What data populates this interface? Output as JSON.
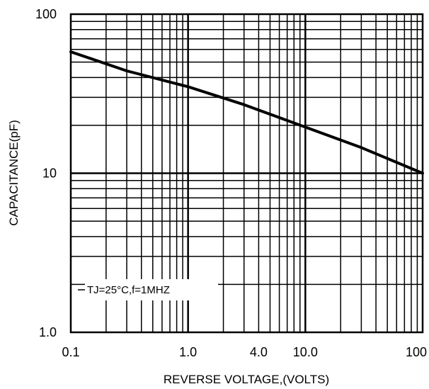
{
  "chart_data": {
    "type": "line",
    "title": "",
    "xlabel": "REVERSE VOLTAGE,(VOLTS)",
    "ylabel": "CAPACITANCE(pF)",
    "xscale": "log",
    "yscale": "log",
    "xlim": [
      0.1,
      100
    ],
    "ylim": [
      1,
      100
    ],
    "grid": true,
    "x_tick_labels": [
      {
        "value": 0.1,
        "label": "0.1"
      },
      {
        "value": 1,
        "label": "1.0"
      },
      {
        "value": 4,
        "label": "4.0"
      },
      {
        "value": 10,
        "label": "10.0"
      },
      {
        "value": 100,
        "label": "100"
      }
    ],
    "y_tick_labels": [
      {
        "value": 1,
        "label": "1.0"
      },
      {
        "value": 10,
        "label": "10"
      },
      {
        "value": 100,
        "label": "100"
      }
    ],
    "annotation": "TJ=25°C,f=1MHZ",
    "series": [
      {
        "x": [
          0.1,
          0.3,
          1,
          3,
          10,
          30,
          100
        ],
        "y": [
          58,
          44,
          35,
          27,
          19.5,
          14.5,
          10
        ]
      }
    ]
  }
}
